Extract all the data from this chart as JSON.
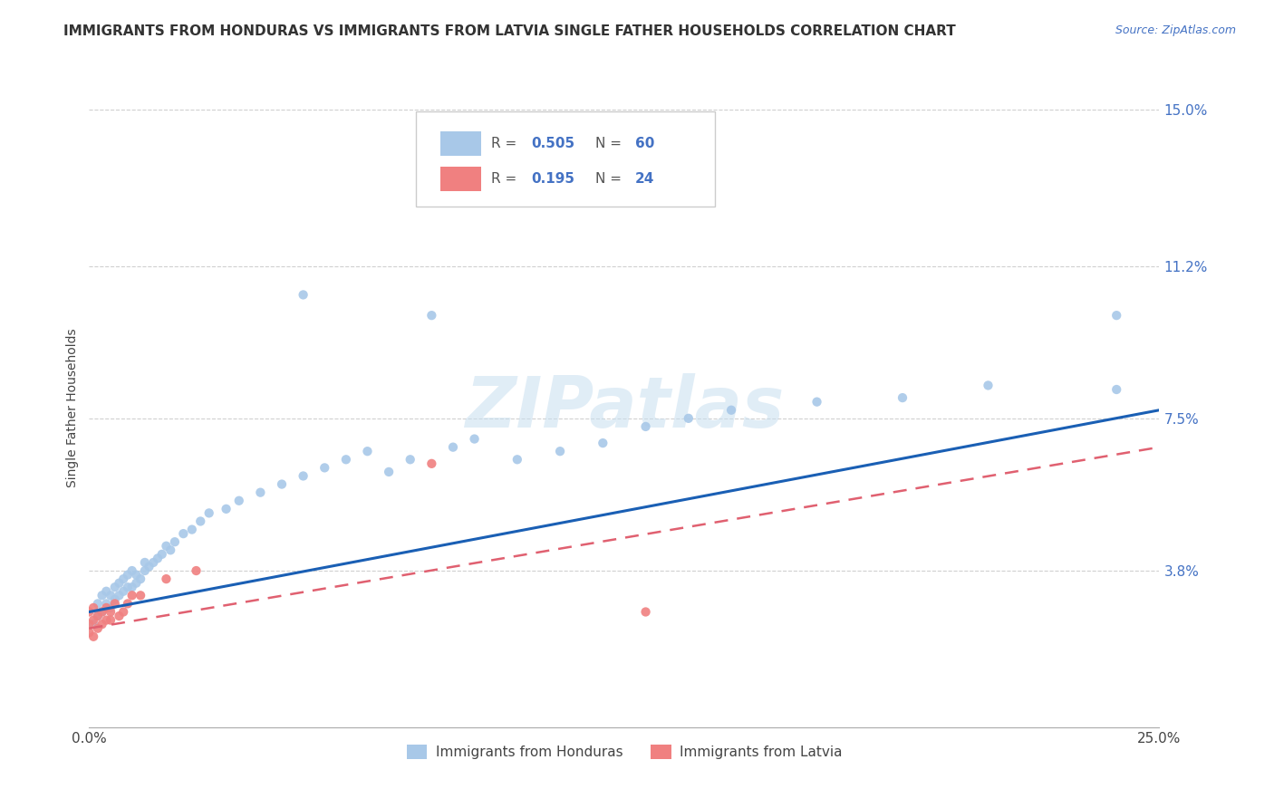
{
  "title": "IMMIGRANTS FROM HONDURAS VS IMMIGRANTS FROM LATVIA SINGLE FATHER HOUSEHOLDS CORRELATION CHART",
  "source": "Source: ZipAtlas.com",
  "ylabel": "Single Father Households",
  "xlim": [
    0.0,
    0.25
  ],
  "ylim": [
    0.0,
    0.155
  ],
  "yticks": [
    0.038,
    0.075,
    0.112,
    0.15
  ],
  "ytick_labels": [
    "3.8%",
    "7.5%",
    "11.2%",
    "15.0%"
  ],
  "xticks": [
    0.0,
    0.25
  ],
  "xtick_labels": [
    "0.0%",
    "25.0%"
  ],
  "color_honduras": "#a8c8e8",
  "color_latvia": "#f08080",
  "line_color_honduras": "#1a5fb4",
  "line_color_latvia": "#e06070",
  "watermark": "ZIPatlas",
  "background": "#ffffff",
  "grid_color": "#d0d0d0",
  "honduras_x": [
    0.001,
    0.002,
    0.002,
    0.003,
    0.003,
    0.004,
    0.004,
    0.005,
    0.005,
    0.006,
    0.006,
    0.007,
    0.007,
    0.008,
    0.008,
    0.009,
    0.009,
    0.01,
    0.01,
    0.011,
    0.011,
    0.012,
    0.013,
    0.013,
    0.014,
    0.015,
    0.016,
    0.017,
    0.018,
    0.019,
    0.02,
    0.022,
    0.024,
    0.026,
    0.028,
    0.032,
    0.035,
    0.04,
    0.045,
    0.05,
    0.055,
    0.06,
    0.065,
    0.07,
    0.075,
    0.085,
    0.09,
    0.1,
    0.11,
    0.12,
    0.13,
    0.14,
    0.15,
    0.17,
    0.19,
    0.21,
    0.24,
    0.24,
    0.05,
    0.08
  ],
  "honduras_y": [
    0.025,
    0.027,
    0.03,
    0.028,
    0.032,
    0.03,
    0.033,
    0.029,
    0.032,
    0.031,
    0.034,
    0.032,
    0.035,
    0.033,
    0.036,
    0.034,
    0.037,
    0.034,
    0.038,
    0.035,
    0.037,
    0.036,
    0.038,
    0.04,
    0.039,
    0.04,
    0.041,
    0.042,
    0.044,
    0.043,
    0.045,
    0.047,
    0.048,
    0.05,
    0.052,
    0.053,
    0.055,
    0.057,
    0.059,
    0.061,
    0.063,
    0.065,
    0.067,
    0.062,
    0.065,
    0.068,
    0.07,
    0.065,
    0.067,
    0.069,
    0.073,
    0.075,
    0.077,
    0.079,
    0.08,
    0.083,
    0.082,
    0.1,
    0.105,
    0.1
  ],
  "latvia_x": [
    0.0,
    0.0,
    0.0,
    0.001,
    0.001,
    0.001,
    0.002,
    0.002,
    0.003,
    0.003,
    0.004,
    0.004,
    0.005,
    0.005,
    0.006,
    0.007,
    0.008,
    0.009,
    0.01,
    0.012,
    0.018,
    0.025,
    0.08,
    0.13
  ],
  "latvia_y": [
    0.023,
    0.025,
    0.028,
    0.022,
    0.026,
    0.029,
    0.024,
    0.027,
    0.025,
    0.028,
    0.026,
    0.029,
    0.026,
    0.028,
    0.03,
    0.027,
    0.028,
    0.03,
    0.032,
    0.032,
    0.036,
    0.038,
    0.064,
    0.028
  ],
  "hline_x": [
    0.0,
    0.25
  ],
  "hline_y": [
    0.028,
    0.077
  ],
  "lline_x": [
    0.0,
    0.25
  ],
  "lline_y": [
    0.024,
    0.068
  ],
  "title_fontsize": 11,
  "tick_fontsize": 11,
  "legend_fontsize": 11
}
